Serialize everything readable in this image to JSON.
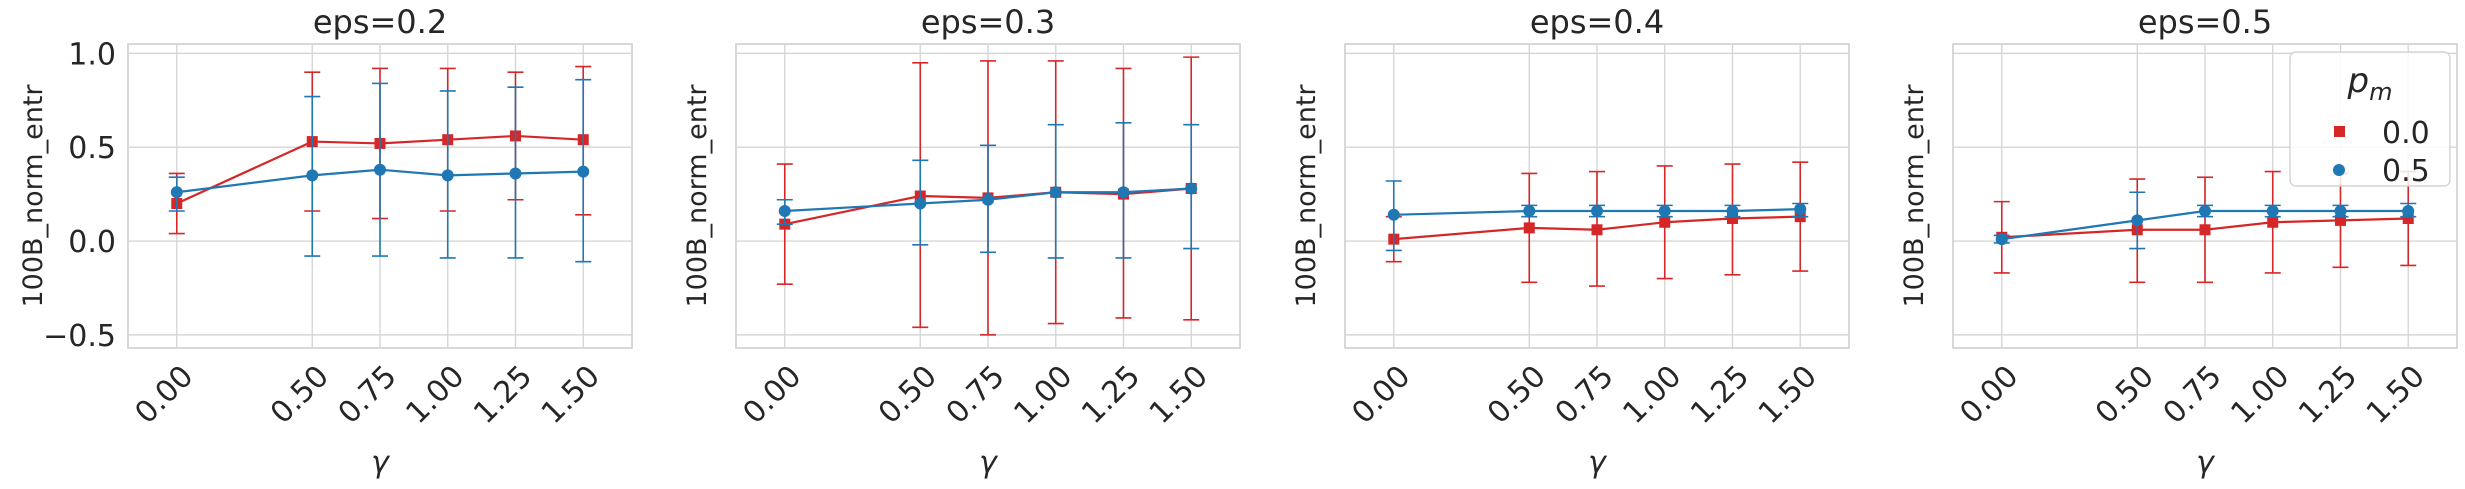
{
  "colors": {
    "red": "#d62728",
    "blue": "#1f77b4",
    "grid": "#d6d6d6",
    "frame": "#cccccc",
    "text": "#262626"
  },
  "legend": {
    "title": "p_m",
    "title_base": "p",
    "title_sub": "m",
    "entries": [
      "0.0",
      "0.5"
    ],
    "placement": "upper-right",
    "panel_index": 3
  },
  "chart_data": [
    {
      "type": "line",
      "title": "eps=0.2",
      "xlabel": "γ",
      "ylabel": "100B_norm_entr",
      "x": [
        0.0,
        0.5,
        0.75,
        1.0,
        1.25,
        1.5
      ],
      "xticklabels": [
        "0.00",
        "0.50",
        "0.75",
        "1.00",
        "1.25",
        "1.50"
      ],
      "ylim": [
        -0.57,
        1.05
      ],
      "yticks": [
        -0.5,
        0.0,
        0.5,
        1.0
      ],
      "yticklabels": [
        "−0.5",
        "0.0",
        "0.5",
        "1.0"
      ],
      "grid": true,
      "series": [
        {
          "name": "0.0",
          "marker": "square",
          "color": "#d62728",
          "values": [
            0.2,
            0.53,
            0.52,
            0.54,
            0.56,
            0.54
          ],
          "err_low": [
            0.04,
            0.16,
            0.12,
            0.16,
            0.22,
            0.14
          ],
          "err_high": [
            0.36,
            0.9,
            0.92,
            0.92,
            0.9,
            0.93
          ]
        },
        {
          "name": "0.5",
          "marker": "circle",
          "color": "#1f77b4",
          "values": [
            0.26,
            0.35,
            0.38,
            0.35,
            0.36,
            0.37
          ],
          "err_low": [
            0.16,
            -0.08,
            -0.08,
            -0.09,
            -0.09,
            -0.11
          ],
          "err_high": [
            0.34,
            0.77,
            0.84,
            0.8,
            0.82,
            0.86
          ]
        }
      ]
    },
    {
      "type": "line",
      "title": "eps=0.3",
      "xlabel": "γ",
      "ylabel": "100B_norm_entr",
      "x": [
        0.0,
        0.5,
        0.75,
        1.0,
        1.25,
        1.5
      ],
      "xticklabels": [
        "0.00",
        "0.50",
        "0.75",
        "1.00",
        "1.25",
        "1.50"
      ],
      "ylim": [
        -0.57,
        1.05
      ],
      "yticks": [],
      "yticklabels": [],
      "grid": true,
      "series": [
        {
          "name": "0.0",
          "marker": "square",
          "color": "#d62728",
          "values": [
            0.09,
            0.24,
            0.23,
            0.26,
            0.25,
            0.28
          ],
          "err_low": [
            -0.23,
            -0.46,
            -0.5,
            -0.44,
            -0.41,
            -0.42
          ],
          "err_high": [
            0.41,
            0.95,
            0.96,
            0.96,
            0.92,
            0.98
          ]
        },
        {
          "name": "0.5",
          "marker": "circle",
          "color": "#1f77b4",
          "values": [
            0.16,
            0.2,
            0.22,
            0.26,
            0.26,
            0.28
          ],
          "err_low": [
            0.09,
            -0.02,
            -0.06,
            -0.09,
            -0.09,
            -0.04
          ],
          "err_high": [
            0.22,
            0.43,
            0.51,
            0.62,
            0.63,
            0.62
          ]
        }
      ]
    },
    {
      "type": "line",
      "title": "eps=0.4",
      "xlabel": "γ",
      "ylabel": "100B_norm_entr",
      "x": [
        0.0,
        0.5,
        0.75,
        1.0,
        1.25,
        1.5
      ],
      "xticklabels": [
        "0.00",
        "0.50",
        "0.75",
        "1.00",
        "1.25",
        "1.50"
      ],
      "ylim": [
        -0.57,
        1.05
      ],
      "yticks": [],
      "yticklabels": [],
      "grid": true,
      "series": [
        {
          "name": "0.0",
          "marker": "square",
          "color": "#d62728",
          "values": [
            0.01,
            0.07,
            0.06,
            0.1,
            0.12,
            0.13
          ],
          "err_low": [
            -0.11,
            -0.22,
            -0.24,
            -0.2,
            -0.18,
            -0.16
          ],
          "err_high": [
            0.13,
            0.36,
            0.37,
            0.4,
            0.41,
            0.42
          ]
        },
        {
          "name": "0.5",
          "marker": "circle",
          "color": "#1f77b4",
          "values": [
            0.14,
            0.16,
            0.16,
            0.16,
            0.16,
            0.17
          ],
          "err_low": [
            -0.05,
            0.13,
            0.13,
            0.13,
            0.13,
            0.13
          ],
          "err_high": [
            0.32,
            0.19,
            0.19,
            0.19,
            0.19,
            0.2
          ]
        }
      ]
    },
    {
      "type": "line",
      "title": "eps=0.5",
      "xlabel": "γ",
      "ylabel": "100B_norm_entr",
      "x": [
        0.0,
        0.5,
        0.75,
        1.0,
        1.25,
        1.5
      ],
      "xticklabels": [
        "0.00",
        "0.50",
        "0.75",
        "1.00",
        "1.25",
        "1.50"
      ],
      "ylim": [
        -0.57,
        1.05
      ],
      "yticks": [],
      "yticklabels": [],
      "grid": true,
      "series": [
        {
          "name": "0.0",
          "marker": "square",
          "color": "#d62728",
          "values": [
            0.02,
            0.06,
            0.06,
            0.1,
            0.11,
            0.12
          ],
          "err_low": [
            -0.17,
            -0.22,
            -0.22,
            -0.17,
            -0.14,
            -0.13
          ],
          "err_high": [
            0.21,
            0.33,
            0.34,
            0.37,
            0.36,
            0.37
          ]
        },
        {
          "name": "0.5",
          "marker": "circle",
          "color": "#1f77b4",
          "values": [
            0.01,
            0.11,
            0.16,
            0.16,
            0.16,
            0.16
          ],
          "err_low": [
            -0.01,
            -0.04,
            0.13,
            0.13,
            0.13,
            0.13
          ],
          "err_high": [
            0.03,
            0.26,
            0.19,
            0.19,
            0.19,
            0.2
          ]
        }
      ]
    }
  ]
}
